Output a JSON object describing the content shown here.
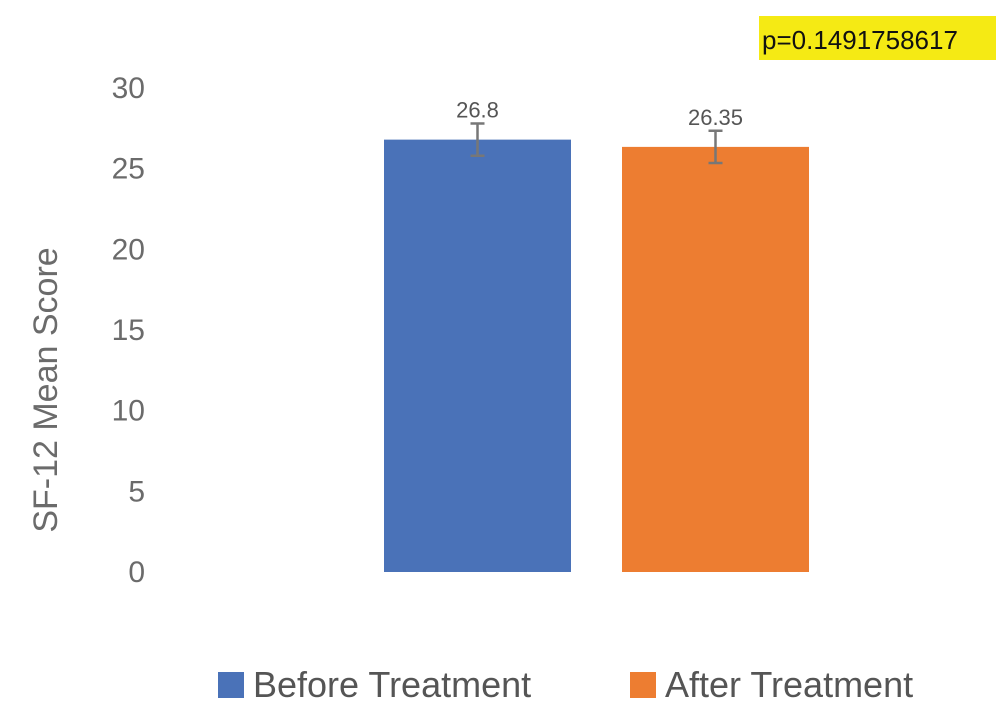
{
  "chart_data": {
    "type": "bar",
    "title": "",
    "xlabel": "",
    "ylabel": "SF-12 Mean Score",
    "ylim": [
      0,
      30
    ],
    "y_ticks": [
      0,
      5,
      10,
      15,
      20,
      25,
      30
    ],
    "grid": false,
    "legend_position": "bottom",
    "annotation": "p=0.1491758617",
    "annotation_highlight_color": "#f5ea14",
    "series": [
      {
        "name": "Before Treatment",
        "value": 26.8,
        "value_label": "26.8",
        "error_low": 25.8,
        "error_high": 27.8,
        "color": "#4a72b8"
      },
      {
        "name": "After Treatment",
        "value": 26.35,
        "value_label": "26.35",
        "error_low": 25.35,
        "error_high": 27.35,
        "color": "#ed7d31"
      }
    ],
    "error_bar_color": "#777777",
    "axis_text_color": "#6b6b6b"
  }
}
